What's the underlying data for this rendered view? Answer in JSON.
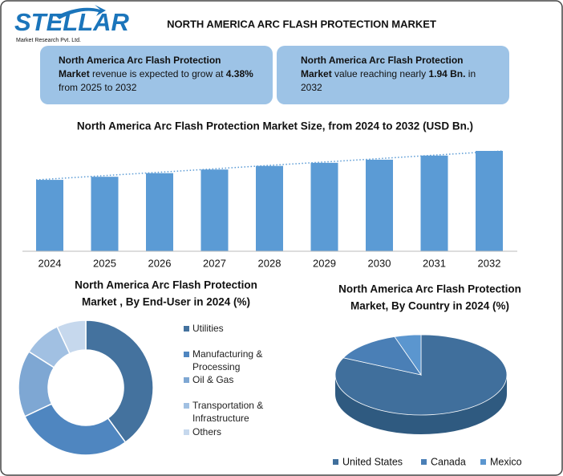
{
  "header": {
    "logo": "STELLAR",
    "tagline": "Market Research Pvt. Ltd.",
    "title": "NORTH AMERICA ARC FLASH PROTECTION MARKET"
  },
  "info_boxes": [
    [
      {
        "text": "North America Arc Flash Protection Market",
        "bold": true
      },
      {
        "text": " revenue is expected to grow at ",
        "bold": false
      },
      {
        "text": "4.38%",
        "bold": true
      },
      {
        "text": " from 2025 to 2032",
        "bold": false
      }
    ],
    [
      {
        "text": "North America Arc Flash Protection Market",
        "bold": true
      },
      {
        "text": " value reaching nearly ",
        "bold": false
      },
      {
        "text": "1.94 Bn.",
        "bold": true
      },
      {
        "text": " in 2032",
        "bold": false
      }
    ]
  ],
  "chart_data": [
    {
      "type": "bar",
      "title": "North America Arc Flash Protection Market Size, from 2024 to 2032 (USD Bn.)",
      "categories": [
        "2024",
        "2025",
        "2026",
        "2027",
        "2028",
        "2029",
        "2030",
        "2031",
        "2032"
      ],
      "values": [
        1.38,
        1.44,
        1.51,
        1.58,
        1.65,
        1.71,
        1.77,
        1.85,
        1.94
      ],
      "color": "#5b9bd5"
    },
    {
      "type": "donut",
      "title": [
        "North America Arc Flash Protection",
        "Market , By End-User in 2024 (%)"
      ],
      "categories": [
        "Utilities",
        "Manufacturing & Processing",
        "Oil & Gas",
        "Transportation & Infrastructure",
        "Others"
      ],
      "values": [
        40,
        28,
        16,
        9,
        7
      ],
      "colors": [
        "#44729e",
        "#4f86c0",
        "#7ea7d3",
        "#a1c0e2",
        "#c6d8ed"
      ]
    },
    {
      "type": "pie3d",
      "title": [
        "North America Arc Flash Protection",
        "Market, By Country in 2024 (%)"
      ],
      "categories": [
        "United States",
        "Canada",
        "Mexico"
      ],
      "values": [
        82,
        13,
        5
      ],
      "colors": [
        "#406f9c",
        "#4a7fb6",
        "#5b96cf"
      ],
      "legend": "bottom"
    }
  ]
}
